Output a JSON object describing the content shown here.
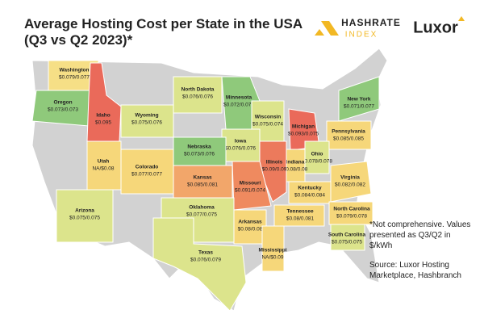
{
  "header": {
    "title": "Average Hosting Cost per State in the USA",
    "subtitle": "(Q3 vs Q2 2023)*"
  },
  "logos": {
    "hashrate": "HASHRATE",
    "index": "INDEX",
    "luxor": "Luxor"
  },
  "states": [
    {
      "name": "Washington",
      "value": "$0.079/0.077",
      "color": "#f6df86"
    },
    {
      "name": "Oregon",
      "value": "$0.073/0.073",
      "color": "#8fc97b"
    },
    {
      "name": "Idaho",
      "value": "$0.095",
      "color": "#ea6a5a"
    },
    {
      "name": "Wyoming",
      "value": "$0.075/0.076",
      "color": "#dce48c"
    },
    {
      "name": "North Dakota",
      "value": "$0.076/0.076",
      "color": "#dce48c"
    },
    {
      "name": "Minnesota",
      "value": "$0.072/0.072",
      "color": "#8fc97b"
    },
    {
      "name": "Wisconsin",
      "value": "$0.075/0.074",
      "color": "#dce48c"
    },
    {
      "name": "Michigan",
      "value": "$0.093/0.075",
      "color": "#ea6a5a"
    },
    {
      "name": "New York",
      "value": "$0.071/0.077",
      "color": "#8fc97b"
    },
    {
      "name": "Pennsylvania",
      "value": "$0.085/0.085",
      "color": "#f6d77a"
    },
    {
      "name": "Ohio",
      "value": "$0.078/0.078",
      "color": "#dce48c"
    },
    {
      "name": "Indiana",
      "value": "$0.08/0.08",
      "color": "#f6d77a"
    },
    {
      "name": "Illinois",
      "value": "$0.09/0.09",
      "color": "#ec7a5c"
    },
    {
      "name": "Iowa",
      "value": "$0.076/0.076",
      "color": "#dce48c"
    },
    {
      "name": "Nebraska",
      "value": "$0.073/0.076",
      "color": "#8fc97b"
    },
    {
      "name": "Utah",
      "value": "NA/$0.08",
      "color": "#f6d77a"
    },
    {
      "name": "Colorado",
      "value": "$0.077/0.077",
      "color": "#f6d77a"
    },
    {
      "name": "Kansas",
      "value": "$0.085/0.081",
      "color": "#f2a66a"
    },
    {
      "name": "Missouri",
      "value": "$0.091/0.074",
      "color": "#ef8a5f"
    },
    {
      "name": "Kentucky",
      "value": "$0.084/0.084",
      "color": "#f6d77a"
    },
    {
      "name": "Virginia",
      "value": "$0.082/0.082",
      "color": "#f6d77a"
    },
    {
      "name": "North Carolina",
      "value": "$0.079/0.078",
      "color": "#f6d77a"
    },
    {
      "name": "Tennessee",
      "value": "$0.08/0.081",
      "color": "#f6d77a"
    },
    {
      "name": "Arkansas",
      "value": "$0.08/0.08",
      "color": "#f6d77a"
    },
    {
      "name": "Oklahoma",
      "value": "$0.077/0.075",
      "color": "#dce48c"
    },
    {
      "name": "Arizona",
      "value": "$0.075/0.075",
      "color": "#dce48c"
    },
    {
      "name": "Texas",
      "value": "$0.076/0.079",
      "color": "#dce48c"
    },
    {
      "name": "Mississippi",
      "value": "NA/$0.09",
      "color": "#f6d77a"
    },
    {
      "name": "South Carolina",
      "value": "$0.075/0.075",
      "color": "#dce48c"
    }
  ],
  "note": "*Not comprehensive. Values presented as Q3/Q2 in $/kWh",
  "source": "Source: Luxor Hosting Marketplace, Hashbranch"
}
